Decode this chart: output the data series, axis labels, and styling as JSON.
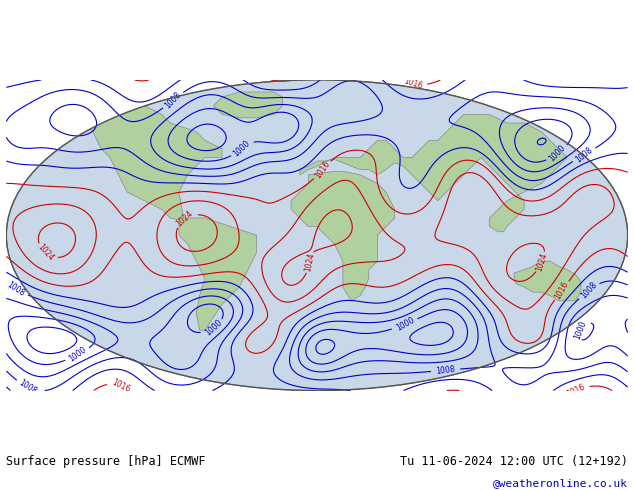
{
  "title_left": "Surface pressure [hPa] ECMWF",
  "title_right": "Tu 11-06-2024 12:00 UTC (12+192)",
  "credit": "@weatheronline.co.uk",
  "bg_color": "#ffffff",
  "map_bg": "#e8e8e8",
  "land_color": "#b0d0a0",
  "ocean_color": "#d0d8e8",
  "contour_low_color": "#0000cc",
  "contour_high_color": "#cc0000",
  "contour_mid_color": "#000000",
  "label_low_color": "#0000cc",
  "label_high_color": "#cc0000",
  "label_mid_color": "#000000",
  "contour_interval": 4,
  "pressure_min": 960,
  "pressure_max": 1040,
  "fig_width": 6.34,
  "fig_height": 4.9,
  "dpi": 100
}
